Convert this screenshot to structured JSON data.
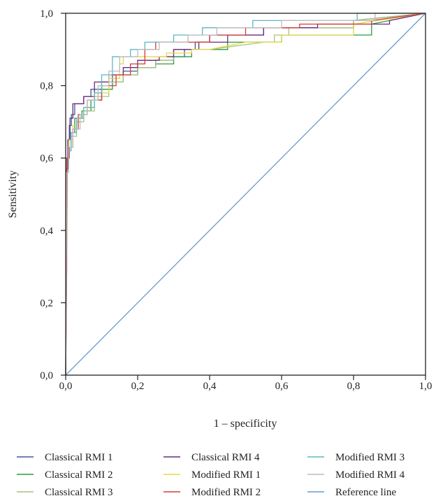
{
  "chart_data": {
    "type": "line",
    "title": "",
    "xlabel": "1 – specificity",
    "ylabel": "Sensitivity",
    "xlim": [
      0,
      1
    ],
    "ylim": [
      0,
      1
    ],
    "x_ticks": [
      "0,0",
      "0,2",
      "0,4",
      "0,6",
      "0,8",
      "1,0"
    ],
    "y_ticks": [
      "0,0",
      "0,2",
      "0,4",
      "0,6",
      "0,8",
      "1,0"
    ],
    "grid": false,
    "legend_position": "bottom",
    "series": [
      {
        "name": "Classical RMI 1",
        "color": "#3c5a98",
        "x": [
          0,
          0.003,
          0.003,
          0.006,
          0.006,
          0.01,
          0.01,
          0.016,
          0.016,
          0.025,
          0.025,
          0.05,
          0.05,
          0.07,
          0.07,
          0.1,
          0.1,
          0.13,
          0.13,
          0.16,
          0.16,
          0.2,
          0.2,
          0.25,
          0.25,
          0.3,
          0.3,
          0.33,
          0.33,
          0.36,
          0.36,
          0.4,
          0.4,
          0.55,
          0.55,
          0.8,
          0.8,
          1
        ],
        "y": [
          0,
          0.52,
          0.6,
          0.6,
          0.65,
          0.65,
          0.69,
          0.69,
          0.72,
          0.72,
          0.75,
          0.75,
          0.77,
          0.77,
          0.79,
          0.79,
          0.81,
          0.81,
          0.83,
          0.83,
          0.84,
          0.84,
          0.85,
          0.85,
          0.87,
          0.87,
          0.88,
          0.88,
          0.9,
          0.9,
          0.92,
          0.92,
          0.94,
          0.94,
          0.96,
          0.96,
          0.98,
          1
        ]
      },
      {
        "name": "Classical RMI 2",
        "color": "#2a9a48",
        "x": [
          0,
          0.003,
          0.003,
          0.008,
          0.008,
          0.015,
          0.015,
          0.025,
          0.025,
          0.045,
          0.045,
          0.07,
          0.07,
          0.1,
          0.1,
          0.13,
          0.13,
          0.16,
          0.16,
          0.2,
          0.2,
          0.25,
          0.25,
          0.3,
          0.3,
          0.35,
          0.35,
          0.45,
          0.45,
          0.6,
          0.6,
          0.85,
          0.85,
          1
        ],
        "y": [
          0,
          0.5,
          0.58,
          0.58,
          0.63,
          0.63,
          0.67,
          0.67,
          0.71,
          0.71,
          0.73,
          0.73,
          0.76,
          0.76,
          0.79,
          0.79,
          0.81,
          0.81,
          0.83,
          0.83,
          0.85,
          0.85,
          0.86,
          0.86,
          0.88,
          0.88,
          0.9,
          0.9,
          0.92,
          0.92,
          0.94,
          0.94,
          0.97,
          1
        ]
      },
      {
        "name": "Classical RMI 3",
        "color": "#a9c27a",
        "x": [
          0,
          0.003,
          0.003,
          0.008,
          0.008,
          0.015,
          0.015,
          0.03,
          0.03,
          0.05,
          0.05,
          0.08,
          0.08,
          0.12,
          0.12,
          0.16,
          0.16,
          0.2,
          0.2,
          0.25,
          0.25,
          0.3,
          0.3,
          0.4,
          0.55,
          0.58,
          0.58,
          0.62,
          0.62,
          0.8,
          0.8,
          1
        ],
        "y": [
          0,
          0.5,
          0.57,
          0.57,
          0.62,
          0.62,
          0.66,
          0.66,
          0.7,
          0.7,
          0.73,
          0.73,
          0.77,
          0.77,
          0.81,
          0.81,
          0.83,
          0.83,
          0.85,
          0.85,
          0.87,
          0.87,
          0.9,
          0.9,
          0.92,
          0.92,
          0.94,
          0.94,
          0.96,
          0.96,
          0.98,
          1
        ]
      },
      {
        "name": "Classical RMI 4",
        "color": "#6a2a7a",
        "x": [
          0,
          0.003,
          0.003,
          0.006,
          0.006,
          0.012,
          0.012,
          0.02,
          0.02,
          0.05,
          0.05,
          0.08,
          0.08,
          0.12,
          0.12,
          0.16,
          0.16,
          0.2,
          0.2,
          0.26,
          0.26,
          0.3,
          0.3,
          0.37,
          0.37,
          0.45,
          0.45,
          0.55,
          0.55,
          0.7,
          0.7,
          0.9,
          0.9,
          1
        ],
        "y": [
          0,
          0.29,
          0.57,
          0.57,
          0.65,
          0.65,
          0.71,
          0.71,
          0.75,
          0.75,
          0.77,
          0.77,
          0.81,
          0.81,
          0.83,
          0.83,
          0.85,
          0.85,
          0.87,
          0.87,
          0.88,
          0.88,
          0.9,
          0.9,
          0.92,
          0.92,
          0.94,
          0.94,
          0.96,
          0.96,
          0.97,
          0.97,
          0.98,
          1
        ]
      },
      {
        "name": "Modified RMI 1",
        "color": "#e6d84a",
        "x": [
          0,
          0.004,
          0.004,
          0.01,
          0.01,
          0.02,
          0.02,
          0.03,
          0.03,
          0.05,
          0.05,
          0.08,
          0.08,
          0.12,
          0.12,
          0.15,
          0.15,
          0.16,
          0.16,
          0.22,
          0.22,
          0.28,
          0.28,
          0.35,
          0.35,
          0.4,
          0.5,
          0.6,
          0.6,
          0.8,
          0.8,
          1
        ],
        "y": [
          0,
          0.53,
          0.6,
          0.6,
          0.65,
          0.65,
          0.69,
          0.69,
          0.71,
          0.71,
          0.74,
          0.74,
          0.78,
          0.78,
          0.82,
          0.82,
          0.86,
          0.86,
          0.88,
          0.88,
          0.88,
          0.88,
          0.89,
          0.89,
          0.9,
          0.9,
          0.92,
          0.92,
          0.94,
          0.94,
          0.97,
          1
        ]
      },
      {
        "name": "Modified RMI 2",
        "color": "#d63a3a",
        "x": [
          0,
          0.004,
          0.004,
          0.01,
          0.01,
          0.02,
          0.02,
          0.035,
          0.035,
          0.06,
          0.06,
          0.1,
          0.1,
          0.14,
          0.14,
          0.18,
          0.18,
          0.22,
          0.22,
          0.25,
          0.25,
          0.3,
          0.3,
          0.4,
          0.4,
          0.5,
          0.5,
          0.65,
          0.65,
          0.85,
          0.85,
          1
        ],
        "y": [
          0,
          0.52,
          0.6,
          0.6,
          0.63,
          0.63,
          0.68,
          0.68,
          0.72,
          0.72,
          0.76,
          0.76,
          0.8,
          0.8,
          0.83,
          0.83,
          0.86,
          0.86,
          0.9,
          0.9,
          0.92,
          0.92,
          0.92,
          0.92,
          0.94,
          0.94,
          0.96,
          0.96,
          0.97,
          0.97,
          0.98,
          1
        ]
      },
      {
        "name": "Modified RMI 3",
        "color": "#5fb6c4",
        "x": [
          0,
          0.003,
          0.003,
          0.008,
          0.008,
          0.015,
          0.015,
          0.03,
          0.03,
          0.05,
          0.05,
          0.08,
          0.08,
          0.1,
          0.1,
          0.13,
          0.13,
          0.18,
          0.18,
          0.22,
          0.22,
          0.3,
          0.3,
          0.38,
          0.38,
          0.52,
          0.52,
          0.81,
          0.81,
          1
        ],
        "y": [
          0,
          0.52,
          0.56,
          0.56,
          0.62,
          0.62,
          0.67,
          0.67,
          0.71,
          0.71,
          0.74,
          0.74,
          0.78,
          0.78,
          0.83,
          0.83,
          0.88,
          0.88,
          0.9,
          0.9,
          0.92,
          0.92,
          0.94,
          0.94,
          0.96,
          0.96,
          0.98,
          0.98,
          1,
          1
        ]
      },
      {
        "name": "Modified RMI 4",
        "color": "#bcbcbc",
        "x": [
          0,
          0.003,
          0.003,
          0.008,
          0.008,
          0.02,
          0.02,
          0.04,
          0.04,
          0.06,
          0.06,
          0.09,
          0.09,
          0.12,
          0.12,
          0.15,
          0.15,
          0.2,
          0.2,
          0.26,
          0.26,
          0.34,
          0.34,
          0.42,
          0.42,
          0.6,
          0.6,
          0.86,
          0.86,
          1
        ],
        "y": [
          0,
          0.52,
          0.56,
          0.56,
          0.63,
          0.63,
          0.68,
          0.68,
          0.72,
          0.72,
          0.76,
          0.76,
          0.8,
          0.8,
          0.84,
          0.84,
          0.88,
          0.88,
          0.9,
          0.9,
          0.92,
          0.92,
          0.94,
          0.94,
          0.96,
          0.96,
          0.98,
          0.98,
          1,
          1
        ]
      },
      {
        "name": "Reference line",
        "color": "#6a9ccf",
        "x": [
          0,
          1
        ],
        "y": [
          0,
          1
        ]
      }
    ]
  }
}
